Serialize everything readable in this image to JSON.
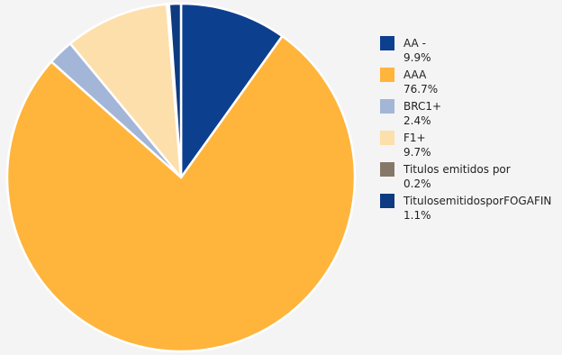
{
  "chart_data": {
    "type": "pie",
    "start_angle_deg": 0,
    "direction": "clockwise",
    "legend_position": "right",
    "slices": [
      {
        "name": "AA -",
        "value": 9.9,
        "label": "9.9%",
        "color": "#0d3f8f"
      },
      {
        "name": "AAA",
        "value": 76.7,
        "label": "76.7%",
        "color": "#ffb43c"
      },
      {
        "name": "BRC1+",
        "value": 2.4,
        "label": "2.4%",
        "color": "#a3b6d8"
      },
      {
        "name": "F1+",
        "value": 9.7,
        "label": "9.7%",
        "color": "#fddfac"
      },
      {
        "name": "Titulos emitidos por",
        "value": 0.2,
        "label": "0.2%",
        "color": "#857868"
      },
      {
        "name": "TitulosemitidosporFOGAFIN",
        "value": 1.1,
        "label": "1.1%",
        "color": "#0d3a80"
      }
    ]
  }
}
